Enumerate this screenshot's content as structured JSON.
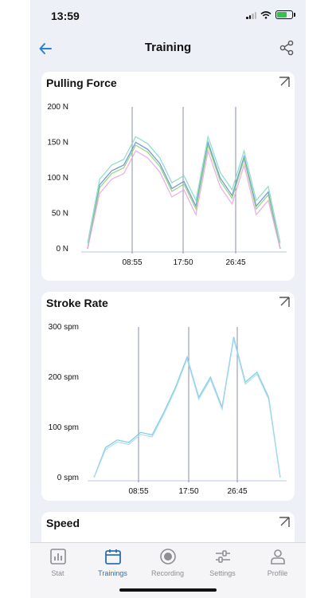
{
  "status": {
    "time": "13:59"
  },
  "header": {
    "title": "Training"
  },
  "cards": [
    {
      "title": "Pulling Force"
    },
    {
      "title": "Stroke Rate"
    },
    {
      "title": "Speed"
    }
  ],
  "chart_data": [
    {
      "type": "line",
      "title": "Pulling Force",
      "y_ticks": [
        "200 N",
        "150 N",
        "100 N",
        "50 N",
        "0 N"
      ],
      "x_ticks": [
        "08:55",
        "17:50",
        "26:45"
      ],
      "ylim": [
        0,
        200
      ],
      "colors": [
        "#5b86d9",
        "#8bd16a",
        "#7fd8c6",
        "#e8a4e0"
      ],
      "series_values_approx": [
        0,
        90,
        110,
        118,
        150,
        140,
        120,
        85,
        95,
        60,
        150,
        100,
        75,
        130,
        60,
        80,
        0
      ]
    },
    {
      "type": "line",
      "title": "Stroke Rate",
      "y_ticks": [
        "300 spm",
        "200 spm",
        "100 spm",
        "0 spm"
      ],
      "x_ticks": [
        "08:55",
        "17:50",
        "26:45"
      ],
      "ylim": [
        0,
        300
      ],
      "colors": [
        "#6cc7e3",
        "#a9d8ee"
      ],
      "series_values_approx": [
        0,
        60,
        75,
        70,
        90,
        85,
        130,
        180,
        240,
        160,
        200,
        140,
        280,
        190,
        210,
        160,
        0
      ]
    }
  ],
  "tabs": [
    {
      "label": "Stat",
      "icon": "bar-chart-icon"
    },
    {
      "label": "Trainings",
      "icon": "calendar-icon",
      "active": true
    },
    {
      "label": "Recording",
      "icon": "record-icon"
    },
    {
      "label": "Settings",
      "icon": "sliders-icon"
    },
    {
      "label": "Profile",
      "icon": "person-icon"
    }
  ]
}
